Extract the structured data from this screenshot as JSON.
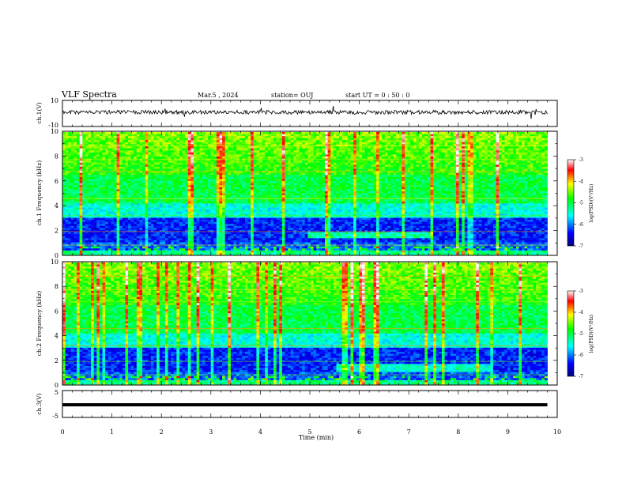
{
  "header": {
    "title": "VLF Spectra",
    "date": "Mar.5 , 2024",
    "station": "station= OUJ",
    "start_ut": "start UT = 0 : 50 : 0"
  },
  "chart_data": [
    {
      "type": "line",
      "panel": "ch1 waveform",
      "ylabel": "ch.1(V)",
      "ylim": [
        -10,
        10
      ],
      "yticks": [
        "10",
        "-10"
      ],
      "xlim": [
        0,
        10
      ],
      "series": [
        {
          "values_summary": "noisy waveform fluctuating near 0 V across 0–9.8 min"
        }
      ]
    },
    {
      "type": "heatmap",
      "panel": "ch1 spectrogram",
      "ylabel": "ch.1 Frequency (kHz)",
      "ylim": [
        0,
        10
      ],
      "yticks": [
        "0",
        "2",
        "4",
        "6",
        "8",
        "10"
      ],
      "xlim": [
        0,
        9.8
      ],
      "colorbar": {
        "label": "log(PSD)(V²/Hz)",
        "ticks": [
          "-3",
          "-4",
          "-5",
          "-6",
          "-7"
        ],
        "range": [
          -7,
          -3
        ],
        "colors": [
          "#000080",
          "#0000ff",
          "#00ffff",
          "#00ff00",
          "#ffff00",
          "#ff0000",
          "#ffffff"
        ]
      }
    },
    {
      "type": "heatmap",
      "panel": "ch2 spectrogram",
      "ylabel": "ch.2 Frequency (kHz)",
      "ylim": [
        0,
        10
      ],
      "yticks": [
        "0",
        "2",
        "4",
        "6",
        "8",
        "10"
      ],
      "xlim": [
        0,
        9.8
      ],
      "colorbar": {
        "label": "log(PSD)(V²/Hz)",
        "ticks": [
          "-3",
          "-4",
          "-5",
          "-6",
          "-7"
        ],
        "range": [
          -7,
          -3
        ],
        "colors": [
          "#000080",
          "#0000ff",
          "#00ffff",
          "#00ff00",
          "#ffff00",
          "#ff0000",
          "#ffffff"
        ]
      }
    },
    {
      "type": "line",
      "panel": "ch3 waveform",
      "ylabel": "ch.3(V)",
      "ylim": [
        -5,
        5
      ],
      "yticks": [
        "5",
        "-5"
      ],
      "xlim": [
        0,
        10
      ],
      "series": [
        {
          "values_summary": "flat thick line near -1 V"
        }
      ]
    }
  ],
  "x_axis": {
    "label": "Time (min)",
    "ticks": [
      "0",
      "1",
      "2",
      "3",
      "4",
      "5",
      "6",
      "7",
      "8",
      "9",
      "10"
    ]
  }
}
